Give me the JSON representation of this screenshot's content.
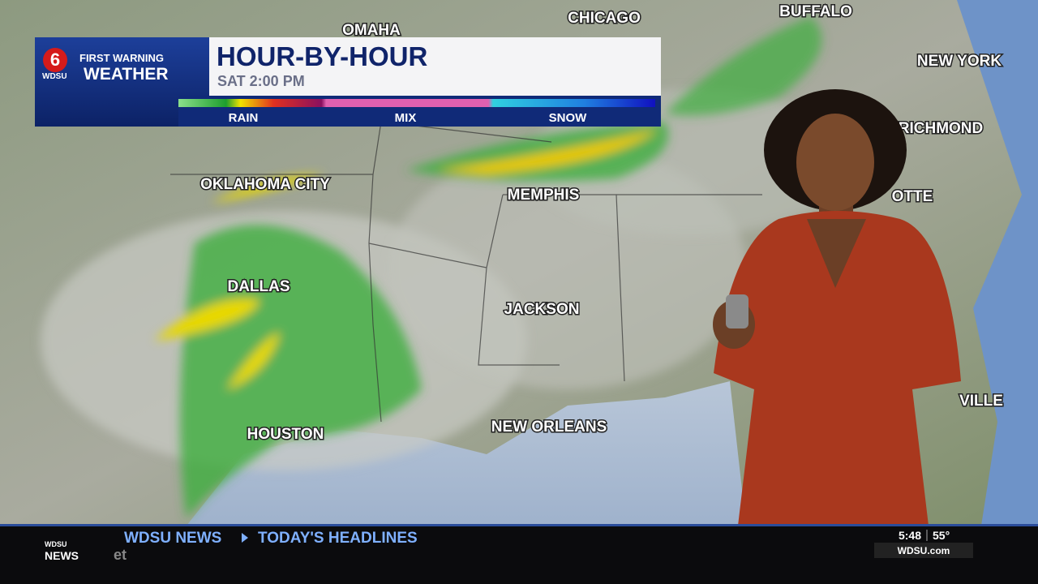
{
  "header": {
    "channel": "6",
    "brand_top": "FIRST WARNING",
    "brand_bottom": "WEATHER",
    "brand_logo": "WDSU",
    "title": "HOUR-BY-HOUR",
    "time": "SAT 2:00 PM",
    "legend": [
      "RAIN",
      "MIX",
      "SNOW"
    ]
  },
  "map": {
    "cities": [
      "OMAHA",
      "CHICAGO",
      "BUFFALO",
      "NEW YORK",
      "RICHMOND",
      "OKLAHOMA CITY",
      "MEMPHIS",
      "OTTE",
      "DALLAS",
      "JACKSON",
      "VILLE",
      "HOUSTON",
      "NEW ORLEANS"
    ]
  },
  "ticker": {
    "logo_top": "WDSU",
    "logo_bottom": "NEWS",
    "program": "WDSU NEWS",
    "headline": "TODAY'S HEADLINES",
    "partial": "et",
    "time": "5:48",
    "temp": "55°",
    "site": "WDSU.com"
  }
}
